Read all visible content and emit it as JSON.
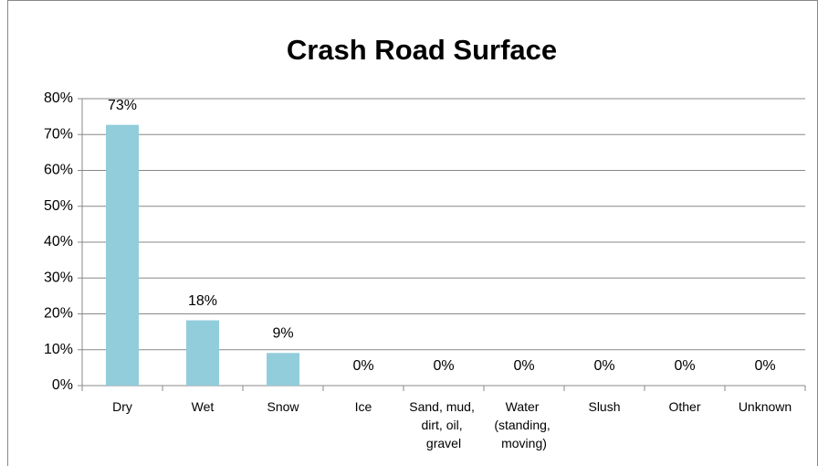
{
  "chart_data": {
    "type": "bar",
    "title": "Crash Road Surface",
    "categories": [
      "Dry",
      "Wet",
      "Snow",
      "Ice",
      "Sand, mud, dirt, oil, gravel",
      "Water (standing, moving)",
      "Slush",
      "Other",
      "Unknown"
    ],
    "values": [
      72.7,
      18.2,
      9.1,
      0,
      0,
      0,
      0,
      0,
      0
    ],
    "value_labels": [
      "73%",
      "18%",
      "9%",
      "0%",
      "0%",
      "0%",
      "0%",
      "0%",
      "0%"
    ],
    "color": "#92cddc",
    "ylim": [
      0,
      80
    ],
    "yticks": [
      {
        "value": 0,
        "label": "0%"
      },
      {
        "value": 10,
        "label": "10%"
      },
      {
        "value": 20,
        "label": "20%"
      },
      {
        "value": 30,
        "label": "30%"
      },
      {
        "value": 40,
        "label": "40%"
      },
      {
        "value": 50,
        "label": "50%"
      },
      {
        "value": 60,
        "label": "60%"
      },
      {
        "value": 70,
        "label": "70%"
      },
      {
        "value": 80,
        "label": "80%"
      }
    ],
    "grid": true
  }
}
